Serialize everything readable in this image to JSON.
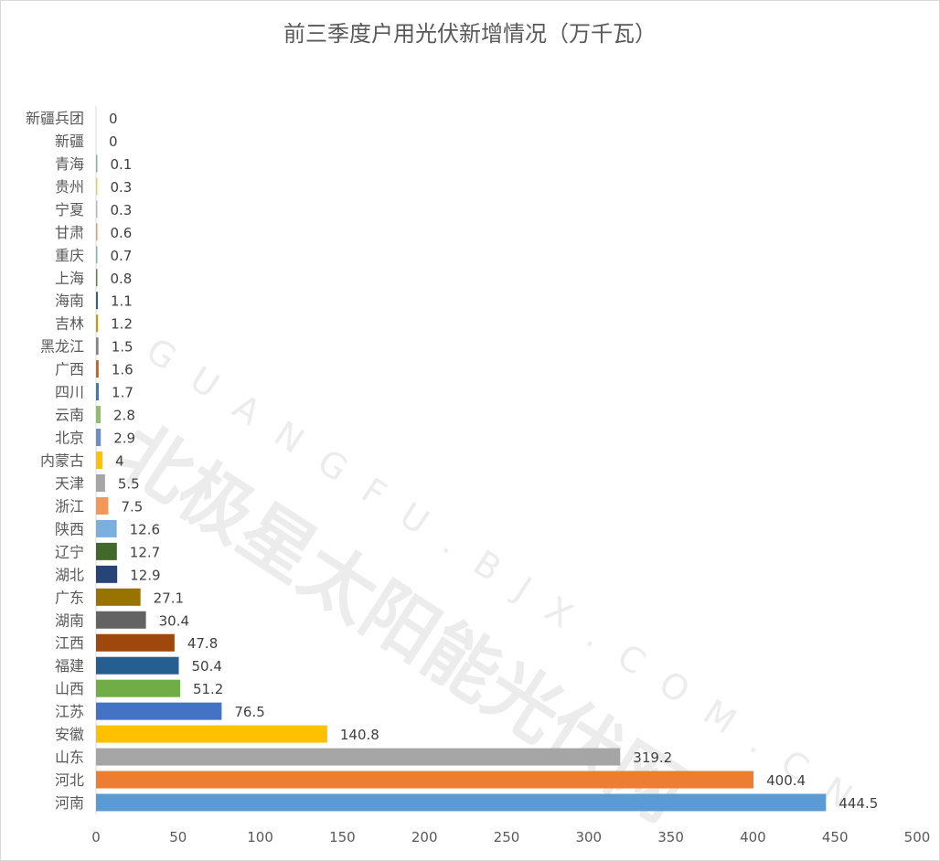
{
  "chart_data": {
    "type": "bar",
    "orientation": "horizontal",
    "title": "前三季度户用光伏新增情况（万千瓦）",
    "categories": [
      "新疆兵团",
      "新疆",
      "青海",
      "贵州",
      "宁夏",
      "甘肃",
      "重庆",
      "上海",
      "海南",
      "吉林",
      "黑龙江",
      "广西",
      "四川",
      "云南",
      "北京",
      "内蒙古",
      "天津",
      "浙江",
      "陕西",
      "辽宁",
      "湖北",
      "广东",
      "湖南",
      "江西",
      "福建",
      "山西",
      "江苏",
      "安徽",
      "山东",
      "河北",
      "河南"
    ],
    "values": [
      0,
      0,
      0.1,
      0.3,
      0.3,
      0.6,
      0.7,
      0.8,
      1.1,
      1.2,
      1.5,
      1.6,
      1.7,
      2.8,
      2.9,
      4,
      5.5,
      7.5,
      12.6,
      12.7,
      12.9,
      27.1,
      30.4,
      47.8,
      50.4,
      51.2,
      76.5,
      140.8,
      319.2,
      400.4,
      444.5
    ],
    "colors": [
      "#5B9BD5",
      "#5B9BD5",
      "#7CAFDD",
      "#FFCD33",
      "#B7B7B7",
      "#F1975A",
      "#7CAFDD",
      "#5A8A39",
      "#335AA1",
      "#CC9A00",
      "#848484",
      "#D26012",
      "#327DC2",
      "#8CC168",
      "#698ED0",
      "#FFC000",
      "#A5A5A5",
      "#F1975A",
      "#7CAFDD",
      "#43682B",
      "#264478",
      "#997300",
      "#636363",
      "#9E480E",
      "#255E91",
      "#70AD47",
      "#4472C4",
      "#FFC000",
      "#A5A5A5",
      "#ED7D31",
      "#5B9BD5"
    ],
    "xlim": [
      0,
      500
    ],
    "xticks": [
      "0",
      "50",
      "100",
      "150",
      "200",
      "250",
      "300",
      "350",
      "400",
      "450",
      "500"
    ],
    "grid": false,
    "data_labels": true
  },
  "watermark": {
    "text": "北极星太阳能光伏网",
    "url": "GUANGFU.BJX.COM.CN"
  }
}
